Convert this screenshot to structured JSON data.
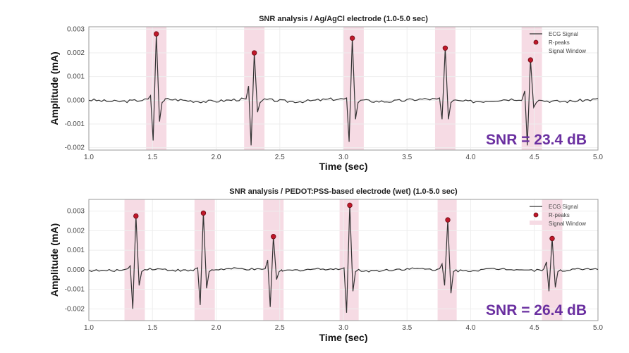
{
  "chart_data": [
    {
      "type": "line",
      "title": "SNR analysis / Ag/AgCl electrode (1.0-5.0 sec)",
      "xlabel": "Time (sec)",
      "ylabel": "Amplitude (mA)",
      "xlim": [
        1.0,
        5.0
      ],
      "ylim": [
        -0.0021,
        0.0031
      ],
      "xticks": [
        "1.0",
        "1.5",
        "2.0",
        "2.5",
        "3.0",
        "3.5",
        "4.0",
        "4.5",
        "5.0"
      ],
      "yticks": [
        "0.003",
        "0.002",
        "0.001",
        "0.000",
        "-0.001",
        "-0.002"
      ],
      "ytick_values": [
        0.003,
        0.002,
        0.001,
        0,
        -0.001,
        -0.002
      ],
      "grid": true,
      "legend": {
        "placement": "top-right",
        "entries": [
          "ECG Signal",
          "R-peaks",
          "Signal Window"
        ]
      },
      "annotation": "SNR = 23.4 dB",
      "beats": [
        {
          "r_time": 1.53,
          "r_peak": 0.0028,
          "q": -0.0017,
          "s": -0.0009,
          "pre": 0.0002,
          "window": [
            1.45,
            1.61
          ]
        },
        {
          "r_time": 2.3,
          "r_peak": 0.002,
          "q": -0.0019,
          "s": -0.0005,
          "pre": 0.0006,
          "window": [
            2.22,
            2.38
          ]
        },
        {
          "r_time": 3.07,
          "r_peak": 0.00262,
          "q": -0.00175,
          "s": -0.0008,
          "pre": 0.0001,
          "window": [
            3.0,
            3.16
          ]
        },
        {
          "r_time": 3.8,
          "r_peak": 0.0022,
          "q": -0.0008,
          "s": -0.0008,
          "pre": 0.0001,
          "window": [
            3.72,
            3.88
          ]
        },
        {
          "r_time": 4.47,
          "r_peak": 0.0017,
          "q": -0.0019,
          "s": -0.0003,
          "pre": 0.0004,
          "window": [
            4.4,
            4.56
          ]
        }
      ]
    },
    {
      "type": "line",
      "title": "SNR analysis / PEDOT:PSS-based electrode (wet) (1.0-5.0 sec)",
      "xlabel": "Time (sec)",
      "ylabel": "Amplitude (mA)",
      "xlim": [
        1.0,
        5.0
      ],
      "ylim": [
        -0.0026,
        0.0036
      ],
      "xticks": [
        "1.0",
        "1.5",
        "2.0",
        "2.5",
        "3.0",
        "3.5",
        "4.0",
        "4.5",
        "5.0"
      ],
      "yticks": [
        "0.003",
        "0.002",
        "0.001",
        "0.000",
        "-0.001",
        "-0.002"
      ],
      "ytick_values": [
        0.003,
        0.002,
        0.001,
        0,
        -0.001,
        -0.002
      ],
      "grid": true,
      "legend": {
        "placement": "top-right",
        "entries": [
          "ECG Signal",
          "R-peaks",
          "Signal Window"
        ]
      },
      "annotation": "SNR = 26.4 dB",
      "beats": [
        {
          "r_time": 1.37,
          "r_peak": 0.00275,
          "q": -0.002,
          "s": -0.0008,
          "pre": 0.0002,
          "window": [
            1.28,
            1.44
          ]
        },
        {
          "r_time": 1.9,
          "r_peak": 0.0029,
          "q": -0.0018,
          "s": -0.00095,
          "pre": 0.0001,
          "window": [
            1.83,
            1.99
          ]
        },
        {
          "r_time": 2.45,
          "r_peak": 0.0017,
          "q": -0.0019,
          "s": -0.0005,
          "pre": 0.0005,
          "window": [
            2.37,
            2.53
          ]
        },
        {
          "r_time": 3.05,
          "r_peak": 0.0033,
          "q": -0.0022,
          "s": -0.0011,
          "pre": 0.0001,
          "window": [
            2.97,
            3.12
          ]
        },
        {
          "r_time": 3.82,
          "r_peak": 0.00255,
          "q": -0.0008,
          "s": -0.0012,
          "pre": 0.0003,
          "window": [
            3.74,
            3.89
          ]
        },
        {
          "r_time": 4.64,
          "r_peak": 0.0016,
          "q": -0.0011,
          "s": -0.0009,
          "pre": 0.0004,
          "window": [
            4.56,
            4.72
          ]
        }
      ]
    }
  ],
  "colors": {
    "signal": "#333333",
    "peak": "#c0182a",
    "window": "#f6dbe4",
    "snr": "#6a2fa0"
  }
}
